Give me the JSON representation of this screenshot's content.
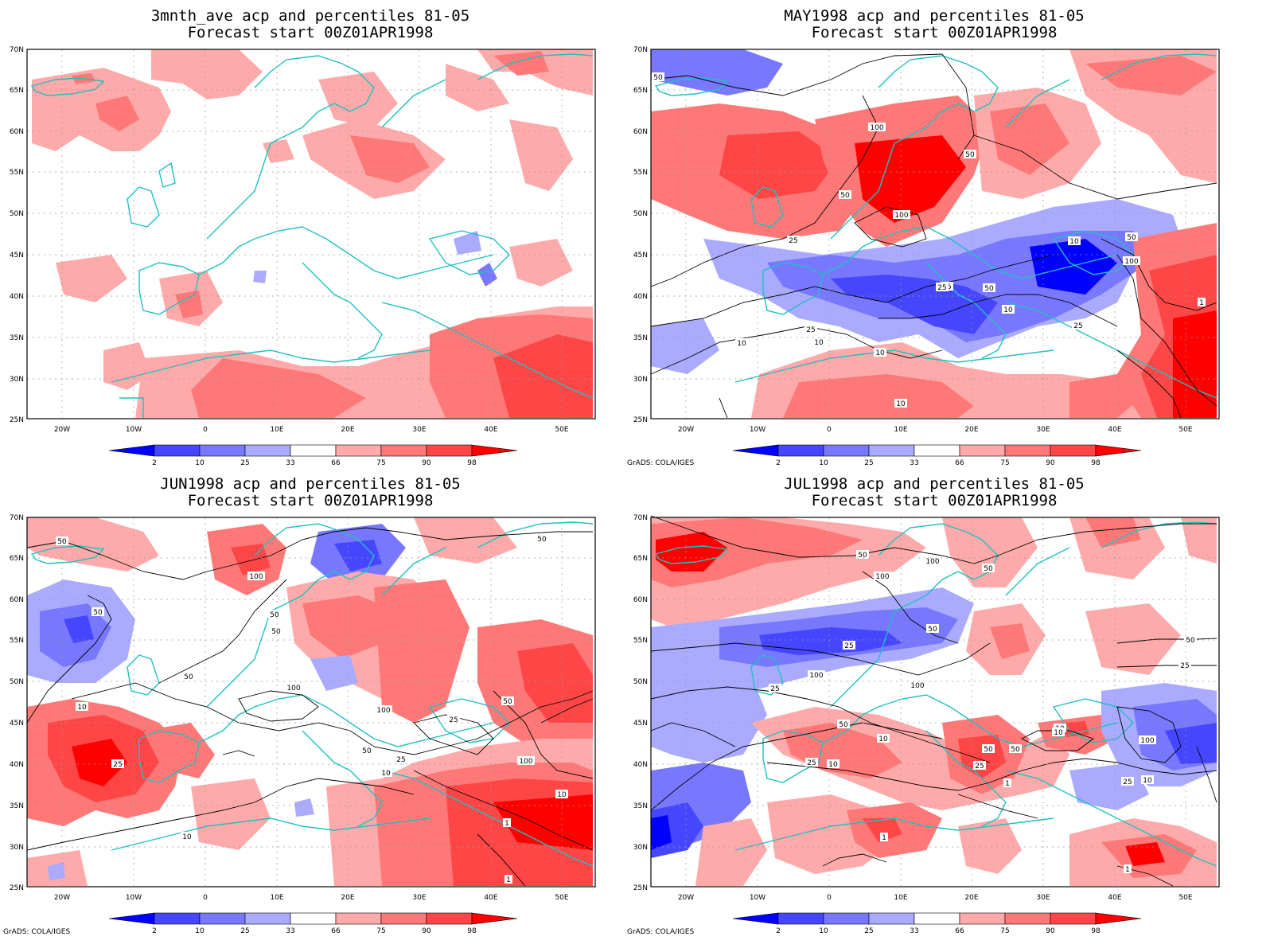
{
  "panels": [
    {
      "id": "p1",
      "title_line1": "3mnth_ave acp and percentiles 81-05",
      "title_line2": "Forecast start 00Z01APR1998",
      "credit": "",
      "has_contours": false
    },
    {
      "id": "p2",
      "title_line1": "MAY1998 acp and percentiles 81-05",
      "title_line2": "Forecast start 00Z01APR1998",
      "credit": "GrADS: COLA/IGES",
      "has_contours": true
    },
    {
      "id": "p3",
      "title_line1": "JUN1998 acp and percentiles 81-05",
      "title_line2": "Forecast start 00Z01APR1998",
      "credit": "GrADS: COLA/IGES",
      "has_contours": true
    },
    {
      "id": "p4",
      "title_line1": "JUL1998 acp and percentiles 81-05",
      "title_line2": "Forecast start 00Z01APR1998",
      "credit": "GrADS: COLA/IGES",
      "has_contours": true
    }
  ],
  "lat_labels": [
    "70N",
    "65N",
    "60N",
    "55N",
    "50N",
    "45N",
    "40N",
    "35N",
    "30N",
    "25N"
  ],
  "lon_labels": [
    "20W",
    "10W",
    "0",
    "10E",
    "20E",
    "30E",
    "40E",
    "50E"
  ],
  "colorbar": {
    "labels": [
      "2",
      "10",
      "25",
      "33",
      "66",
      "75",
      "90",
      "98"
    ],
    "colors": [
      "#0000ff",
      "#4646ff",
      "#7878ff",
      "#aaaaff",
      "#ffffff",
      "#ffaaaa",
      "#ff7878",
      "#ff4646",
      "#ff0000"
    ]
  },
  "contour_labels": {
    "p2": [
      "50",
      "100",
      "50",
      "100",
      "50",
      "25",
      "50",
      "10",
      "25",
      "50",
      "100",
      "25",
      "10",
      "25",
      "10",
      "10",
      "25",
      "10",
      "10",
      "1"
    ],
    "p3": [
      "50",
      "100",
      "50",
      "50",
      "50",
      "100",
      "50",
      "25",
      "10",
      "50",
      "25",
      "10",
      "100",
      "25",
      "10",
      "1",
      "1",
      "10",
      "50",
      "100",
      "50"
    ],
    "p4": [
      "50",
      "100",
      "100",
      "50",
      "50",
      "25",
      "25",
      "50",
      "100",
      "100",
      "50",
      "10",
      "25",
      "50",
      "10",
      "25",
      "10",
      "1",
      "1",
      "1",
      "50",
      "25",
      "100",
      "10",
      "25",
      "10"
    ]
  }
}
